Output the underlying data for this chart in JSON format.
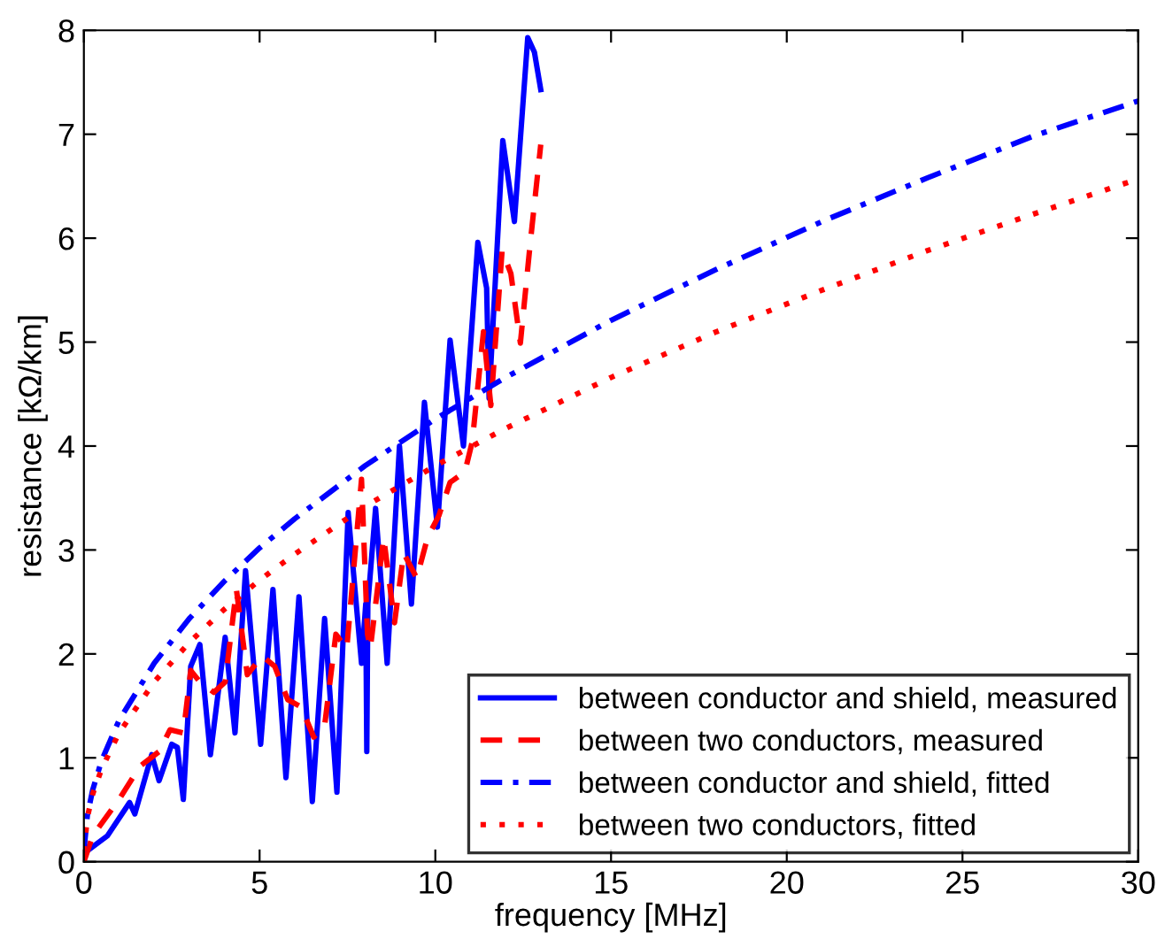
{
  "chart_data": {
    "type": "line",
    "xlabel": "frequency [MHz]",
    "ylabel": "resistance [kΩ/km]",
    "xlim": [
      0,
      30
    ],
    "ylim": [
      0,
      8
    ],
    "xticks": [
      0,
      5,
      10,
      15,
      20,
      25,
      30
    ],
    "yticks": [
      0,
      1,
      2,
      3,
      4,
      5,
      6,
      7,
      8
    ],
    "grid": false,
    "legend": "bottom right",
    "marker": "none",
    "series": [
      {
        "name": "between conductor and shield, measured",
        "color": "#0000ff",
        "line_style": "solid",
        "x": [
          0,
          0.67,
          1.3,
          1.45,
          1.93,
          2.14,
          2.5,
          2.66,
          2.83,
          3.04,
          3.3,
          3.6,
          4.02,
          4.3,
          4.6,
          5.03,
          5.38,
          5.75,
          6.12,
          6.5,
          6.85,
          7.2,
          7.52,
          7.9,
          8.02,
          8.05,
          8.08,
          8.3,
          8.63,
          8.98,
          9.32,
          9.69,
          10.06,
          10.42,
          10.8,
          11.21,
          11.46,
          11.53,
          11.92,
          12.25,
          12.63,
          12.82,
          13.0
        ],
        "values": [
          0.08,
          0.25,
          0.57,
          0.46,
          1.03,
          0.78,
          1.13,
          1.1,
          0.6,
          1.88,
          2.09,
          1.03,
          2.16,
          1.24,
          2.8,
          1.13,
          2.62,
          0.81,
          2.55,
          0.58,
          2.34,
          0.67,
          3.36,
          1.91,
          2.48,
          1.06,
          2.48,
          3.4,
          1.91,
          4.0,
          2.48,
          4.42,
          3.22,
          5.02,
          4.0,
          5.96,
          5.52,
          4.46,
          6.94,
          6.16,
          7.93,
          7.79,
          7.43
        ]
      },
      {
        "name": "between two conductors, measured",
        "color": "#ff0000",
        "line_style": "dashed",
        "x": [
          0,
          0.25,
          1.0,
          1.6,
          2.14,
          2.45,
          2.83,
          3.04,
          3.3,
          3.7,
          4.02,
          4.34,
          4.65,
          5.07,
          5.43,
          5.8,
          6.18,
          6.54,
          6.85,
          7.17,
          7.48,
          7.9,
          8.07,
          8.15,
          8.53,
          8.84,
          9.1,
          9.47,
          9.78,
          10.1,
          10.42,
          10.84,
          11.05,
          11.37,
          11.58,
          11.9,
          12.15,
          12.42,
          12.7,
          13.0
        ],
        "values": [
          0,
          0.25,
          0.6,
          0.92,
          1.06,
          1.27,
          1.24,
          1.84,
          1.73,
          1.63,
          1.73,
          2.62,
          1.8,
          1.98,
          1.88,
          1.56,
          1.49,
          1.2,
          1.31,
          2.19,
          2.05,
          3.68,
          2.19,
          2.05,
          3.12,
          2.3,
          2.97,
          2.73,
          3.12,
          3.33,
          3.65,
          3.75,
          4.04,
          5.1,
          4.39,
          5.88,
          5.66,
          4.99,
          5.95,
          6.9
        ]
      },
      {
        "name": "between conductor and shield, fitted",
        "color": "#0000ff",
        "line_style": "dashdot",
        "x": [
          0,
          0.1,
          0.25,
          0.5,
          1,
          2,
          3,
          4,
          5,
          6,
          8,
          10,
          12,
          15,
          18,
          21,
          24,
          27,
          30
        ],
        "values": [
          0.1,
          0.45,
          0.69,
          0.97,
          1.36,
          1.91,
          2.34,
          2.7,
          3.02,
          3.3,
          3.81,
          4.26,
          4.66,
          5.21,
          5.7,
          6.16,
          6.58,
          6.98,
          7.32
        ]
      },
      {
        "name": "between two conductors, fitted",
        "color": "#ff0000",
        "line_style": "dotted",
        "x": [
          0,
          0.1,
          0.25,
          0.5,
          1,
          2,
          3,
          4,
          5,
          6,
          8,
          10,
          12,
          15,
          18,
          21,
          24,
          27,
          30
        ],
        "values": [
          0.1,
          0.43,
          0.65,
          0.89,
          1.24,
          1.73,
          2.11,
          2.43,
          2.71,
          2.96,
          3.42,
          3.81,
          4.17,
          4.66,
          5.1,
          5.5,
          5.88,
          6.23,
          6.57
        ]
      }
    ]
  }
}
